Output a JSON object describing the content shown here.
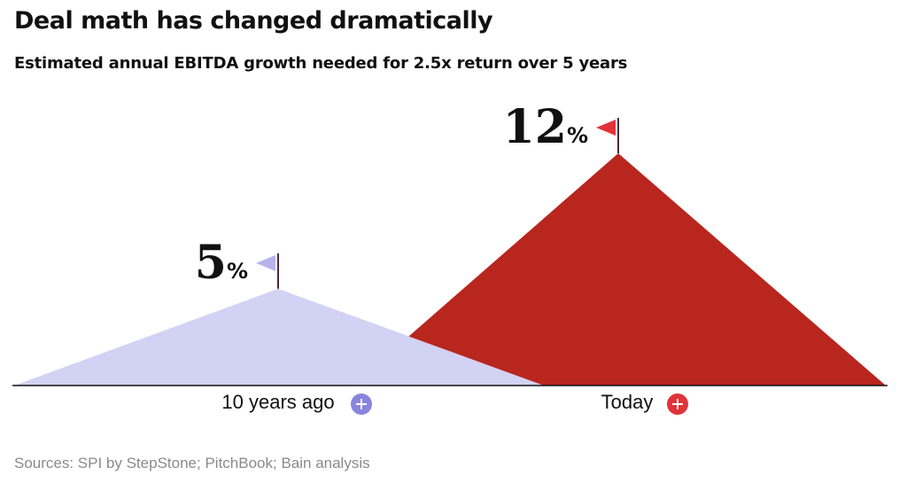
{
  "chart_data": {
    "type": "area",
    "title": "Deal math has changed dramatically",
    "subtitle": "Estimated annual EBITDA growth needed for 2.5x return over 5 years",
    "categories": [
      "10 years ago",
      "Today"
    ],
    "series": [
      {
        "name": "10 years ago",
        "value": 5,
        "value_label": "5",
        "unit_label": "%",
        "color": "#d2d2f4",
        "badge_color": "#8a84de"
      },
      {
        "name": "Today",
        "value": 12,
        "value_label": "12",
        "unit_label": "%",
        "color": "#b9261d",
        "badge_color": "#e0333a"
      }
    ],
    "flag_colors": [
      "#b7b3ec",
      "#e0333a"
    ],
    "ylim": [
      0,
      12
    ],
    "xlabel": "",
    "ylabel": "",
    "grid": false,
    "source": "Sources: SPI by StepStone; PitchBook; Bain analysis"
  }
}
